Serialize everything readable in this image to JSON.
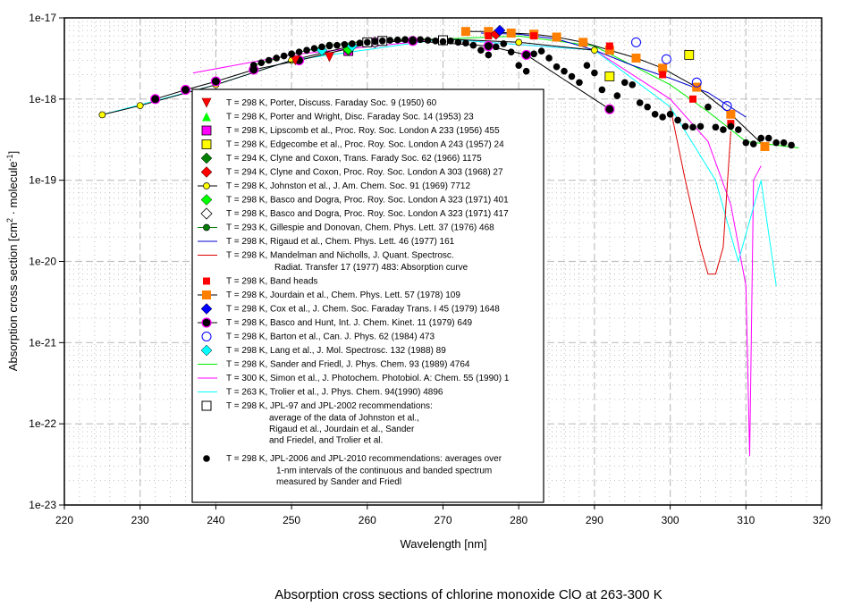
{
  "chart_data": {
    "type": "scatter",
    "title": "Absorption cross sections of chlorine monoxide ClO at 263-300 K",
    "xlabel": "Wavelength [nm]",
    "ylabel": "Absorption cross section [cm2 · molecule-1]",
    "ylabel_parts": {
      "pre": "Absorption cross section [cm",
      "sup1": "2",
      "mid": " · molecule",
      "sup2": "-1",
      "post": "]"
    },
    "xlim": [
      220,
      320
    ],
    "ylim": [
      1e-23,
      1e-17
    ],
    "yscale": "log",
    "grid": true,
    "legend_position": "center-left",
    "x_ticks": [
      "220",
      "230",
      "240",
      "250",
      "260",
      "270",
      "280",
      "290",
      "300",
      "310",
      "320"
    ],
    "y_ticks": [
      "1e-23",
      "1e-22",
      "1e-21",
      "1e-20",
      "1e-19",
      "1e-18",
      "1e-17"
    ],
    "series": [
      {
        "name": "T = 298 K, Porter, Discuss. Faraday Soc. 9 (1950) 60",
        "style": "triangle-down",
        "color": "#ff0000",
        "x": [
          255,
          250.5
        ],
        "y": [
          3.3e-18,
          3e-18
        ]
      },
      {
        "name": "T = 298  K, Porter and Wright, Disc. Faraday Soc. 14 (1953) 23",
        "style": "triangle-up",
        "color": "#00ff00",
        "x": [
          257.5
        ],
        "y": [
          4e-18
        ]
      },
      {
        "name": "T = 298 K, Lipscomb et al., Proc. Roy. Soc. London A 233 (1956) 455",
        "style": "square",
        "color": "#ff00ff",
        "x": [
          257.5
        ],
        "y": [
          3.9e-18
        ]
      },
      {
        "name": "T = 298 K, Edgecombe et al., Proc. Roy. Soc. London A 243 (1957) 24",
        "style": "square",
        "color": "#ffff00",
        "x": [
          292,
          302.5
        ],
        "y": [
          1.9e-18,
          3.5e-18
        ]
      },
      {
        "name": "T = 294 K, Clyne and Coxon, Trans. Farady Soc. 62 (1966) 1175",
        "style": "diamond",
        "color": "#008000",
        "x": [
          257.5
        ],
        "y": [
          4e-18
        ]
      },
      {
        "name": "T = 294 K, Clyne and Coxon, Proc. Roy. Soc. London A 303 (1968) 27",
        "style": "diamond",
        "color": "#ff0000",
        "x": [
          277
        ],
        "y": [
          6.3e-18
        ]
      },
      {
        "name": "T = 298 K, Johnston et al., J. Am. Chem. Soc. 91 (1969) 7712",
        "style": "line-circle",
        "color": "#ffff00",
        "x": [
          225,
          230,
          240,
          250,
          260,
          270,
          280,
          290
        ],
        "y": [
          6.4e-19,
          8.3e-19,
          1.5e-18,
          3e-18,
          5e-18,
          5.5e-18,
          5e-18,
          4e-18
        ]
      },
      {
        "name": "T = 298 K, Basco and Dogra, Proc. Roy. Soc. London A 323 (1971) 401",
        "style": "diamond",
        "color": "#00ff00",
        "x": [
          257.5
        ],
        "y": [
          4.1e-18
        ]
      },
      {
        "name": "T = 298 K, Basco and Dogra, Proc. Roy. Soc. London A 323 (1971) 417",
        "style": "diamond-open",
        "color": "#000000",
        "x": [
          261
        ],
        "y": [
          5e-18
        ]
      },
      {
        "name": "T = 293 K, Gillespie and Donovan, Chem. Phys. Lett. 37 (1976) 468",
        "style": "line-circle",
        "color": "#008000",
        "x": [
          245,
          250,
          255,
          260,
          265,
          270
        ],
        "y": [
          2.6e-18,
          3.6e-18,
          4.6e-18,
          5.2e-18,
          5.4e-18,
          5.5e-18
        ]
      },
      {
        "name": "T = 298 K, Rigaud et al., Chem. Phys. Lett. 46 (1977) 161",
        "style": "line",
        "color": "#0000cc",
        "x": [
          275,
          280,
          285,
          290,
          295,
          300,
          305,
          310
        ],
        "y": [
          6.5e-18,
          6.3e-18,
          5.5e-18,
          4e-18,
          2.6e-18,
          1.8e-18,
          1.2e-18,
          6e-19
        ]
      },
      {
        "name": "T = 298 K, Mandelman and Nicholls, J. Quant. Spectrosc.",
        "name2": "Radiat. Transfer 17 (1977) 483: Absorption curve",
        "style": "line",
        "color": "#dd0000",
        "x": [
          300,
          302,
          304,
          305,
          306,
          307,
          308
        ],
        "y": [
          8e-19,
          1e-19,
          1.5e-20,
          7e-21,
          7e-21,
          1.5e-20,
          4e-19
        ]
      },
      {
        "name": "T = 298 K, Band heads",
        "style": "square-small",
        "color": "#ff0000",
        "x": [
          276,
          282,
          292,
          299,
          303,
          308
        ],
        "y": [
          6e-18,
          6e-18,
          4.5e-18,
          2e-18,
          1e-18,
          5e-19
        ]
      },
      {
        "name": "T = 298 K, Jourdain et al., Chem. Phys. Lett. 57 (1978) 109",
        "style": "line-square",
        "color": "#ff8000",
        "x": [
          273,
          276,
          279,
          282,
          285,
          288.5,
          292,
          295.5,
          299,
          303.5,
          308,
          312.5
        ],
        "y": [
          6.8e-18,
          6.8e-18,
          6.5e-18,
          6.3e-18,
          5.8e-18,
          5e-18,
          4e-18,
          3.2e-18,
          2.4e-18,
          1.4e-18,
          6.5e-19,
          2.6e-19
        ]
      },
      {
        "name": "T = 298 K, Cox et al., J. Chem. Soc. Faraday Trans. I 45 (1979) 1648",
        "style": "diamond",
        "color": "#0000ff",
        "x": [
          277.5
        ],
        "y": [
          7e-18
        ]
      },
      {
        "name": "T = 298 K, Basco and Hunt, Int. J. Chem. Kinet. 11  (1979) 649",
        "style": "line-circle-magenta",
        "color": "#000000",
        "x": [
          232,
          236,
          240,
          245,
          251,
          261,
          266,
          276,
          281,
          292
        ],
        "y": [
          1e-18,
          1.3e-18,
          1.65e-18,
          2.3e-18,
          3e-18,
          5e-18,
          5.2e-18,
          4.5e-18,
          3.5e-18,
          7.5e-19
        ]
      },
      {
        "name": "T = 298 K, Barton et al., Can. J. Phys. 62 (1984) 473",
        "style": "circle-open",
        "color": "#0000ff",
        "x": [
          295.5,
          299.5,
          303.5,
          307.5
        ],
        "y": [
          5e-18,
          3.1e-18,
          1.6e-18,
          8.2e-19
        ]
      },
      {
        "name": "T = 298 K, Lang et al., J. Mol. Spectrosc. 132 (1988) 89",
        "style": "diamond",
        "color": "#00ffff",
        "x": [
          254,
          258
        ],
        "y": [
          4e-18,
          4.5e-18
        ]
      },
      {
        "name": "T = 298 K, Sander and Friedl, J. Phys. Chem. 93 (1989) 4764",
        "style": "line",
        "color": "#00ee00",
        "x": [
          270,
          280,
          290,
          300,
          305,
          310,
          317
        ],
        "y": [
          5.5e-18,
          6e-18,
          4.5e-18,
          1.5e-18,
          7e-19,
          3e-19,
          2.5e-19
        ]
      },
      {
        "name": "T = 300 K, Simon et al., J. Photochem. Photobiol. A: Chem. 55 (1990) 1",
        "style": "line",
        "color": "#ff00ff",
        "x": [
          237,
          250,
          270,
          290,
          300,
          305,
          308,
          310,
          310.5,
          311,
          312
        ],
        "y": [
          2.1e-18,
          3.5e-18,
          5.5e-18,
          4e-18,
          1e-18,
          3e-19,
          5e-20,
          5e-21,
          4e-23,
          1e-19,
          1.5e-19
        ]
      },
      {
        "name": "T = 263 K, Trolier et al., J. Phys. Chem. 94(1990) 4896",
        "style": "line",
        "color": "#00ffff",
        "x": [
          225,
          230,
          240,
          250,
          270,
          290,
          300,
          306,
          309,
          312,
          314
        ],
        "y": [
          6.4e-19,
          8.5e-19,
          1.5e-18,
          3e-18,
          5.5e-18,
          4e-18,
          8e-19,
          1e-19,
          1e-20,
          1e-19,
          5e-21
        ]
      },
      {
        "name": "T = 298 K, JPL-97 and JPL-2002 recommendations:",
        "name_lines": [
          "average of the data of Johnston et al.,",
          "Rigaud et al., Jourdain et al., Sander",
          "and Friedel, and Trolier et al."
        ],
        "style": "square-open",
        "color": "#000000",
        "x": [
          260,
          262,
          270
        ],
        "y": [
          5e-18,
          5.2e-18,
          5.3e-18
        ]
      },
      {
        "name": "T = 298 K, JPL-2006 and JPL-2010 recommendations: averages over",
        "name_lines": [
          "1-nm intervals of the continuous and banded spectrum",
          "measured by Sander and Friedl"
        ],
        "style": "dot",
        "color": "#000000",
        "x": [
          245,
          246,
          247,
          248,
          249,
          250,
          251,
          252,
          253,
          254,
          255,
          256,
          257,
          258,
          259,
          260,
          261,
          262,
          263,
          264,
          265,
          266,
          267,
          268,
          269,
          270,
          271,
          272,
          273,
          274,
          275,
          276,
          277,
          278,
          279,
          280,
          281,
          282,
          283,
          284,
          285,
          286,
          287,
          288,
          289,
          290,
          291,
          292,
          293,
          294,
          295,
          296,
          297,
          298,
          299,
          300,
          301,
          302,
          303,
          304,
          305,
          306,
          307,
          308,
          309,
          310,
          311,
          312,
          313,
          314,
          315,
          316
        ],
        "y": [
          2.6e-18,
          2.8e-18,
          3e-18,
          3.2e-18,
          3.4e-18,
          3.6e-18,
          3.8e-18,
          4e-18,
          4.2e-18,
          4.4e-18,
          4.5e-18,
          4.6e-18,
          4.7e-18,
          4.8e-18,
          4.9e-18,
          5e-18,
          5.1e-18,
          5.2e-18,
          5.3e-18,
          5.35e-18,
          5.4e-18,
          5.4e-18,
          5.4e-18,
          5.3e-18,
          5.2e-18,
          5.1e-18,
          5.2e-18,
          5e-18,
          4.9e-18,
          4.6e-18,
          4e-18,
          3.5e-18,
          4.4e-18,
          4.8e-18,
          3.8e-18,
          2.6e-18,
          2.2e-18,
          3.6e-18,
          3.9e-18,
          3.2e-18,
          2.5e-18,
          2.2e-18,
          1.9e-18,
          1.6e-18,
          2.6e-18,
          2.1e-18,
          1.3e-18,
          7.5e-19,
          1.1e-18,
          1.6e-18,
          1.5e-18,
          9e-19,
          8e-19,
          6.5e-19,
          6e-19,
          6.5e-19,
          5.5e-19,
          4.6e-19,
          4.5e-19,
          4.6e-19,
          8e-19,
          4.5e-19,
          4.2e-19,
          4.6e-19,
          4.2e-19,
          2.9e-19,
          2.8e-19,
          3.3e-19,
          3.3e-19,
          2.9e-19,
          2.9e-19,
          2.7e-19
        ]
      }
    ]
  }
}
